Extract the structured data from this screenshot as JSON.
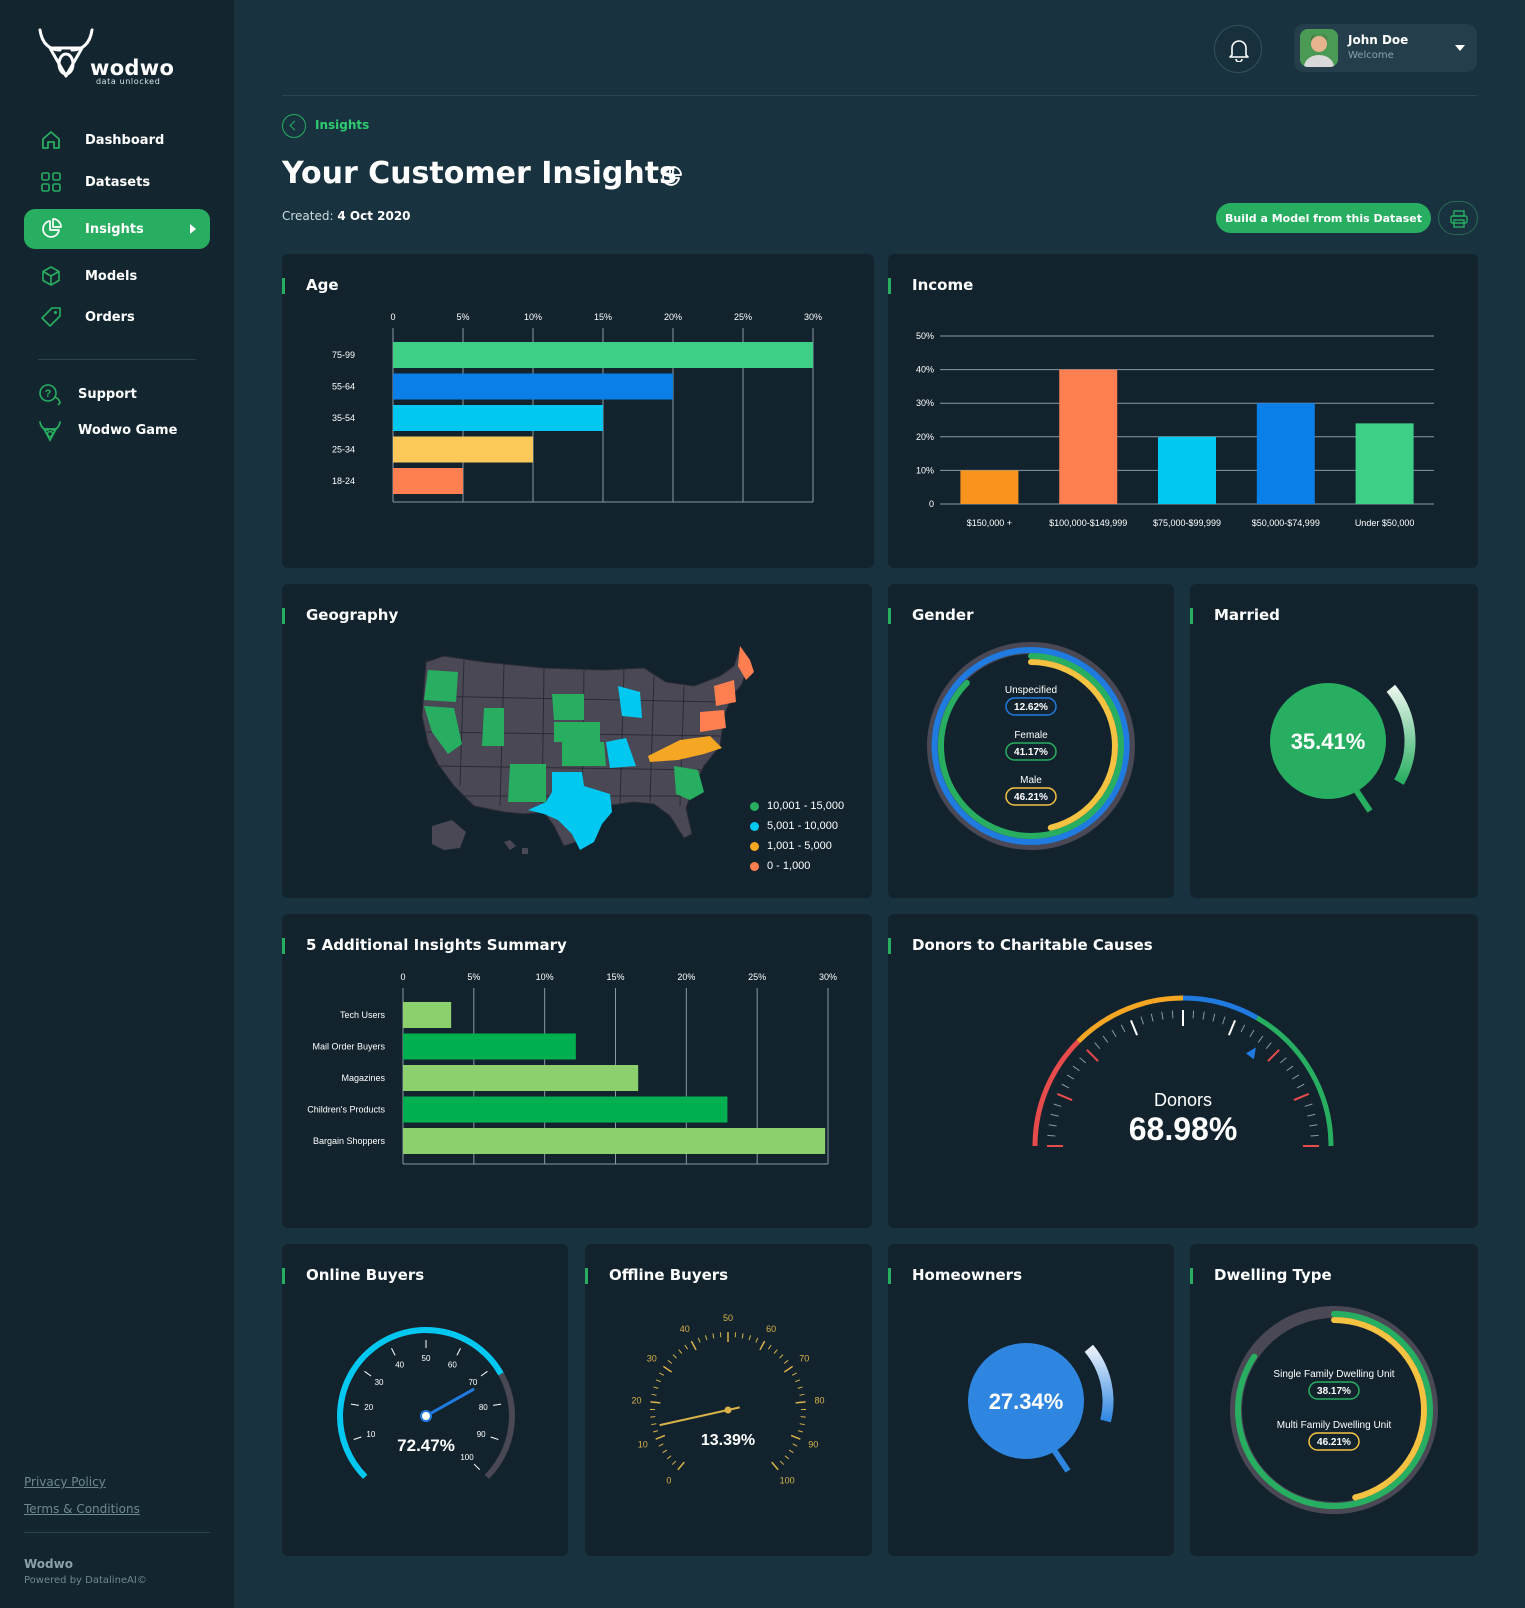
{
  "brand": {
    "name": "wodwo",
    "tagline": "data unlocked"
  },
  "nav": {
    "items": [
      {
        "label": "Dashboard",
        "icon": "home-icon"
      },
      {
        "label": "Datasets",
        "icon": "grid-icon"
      },
      {
        "label": "Insights",
        "icon": "pie-chart-icon",
        "active": true
      },
      {
        "label": "Models",
        "icon": "cube-icon"
      },
      {
        "label": "Orders",
        "icon": "tag-icon"
      }
    ],
    "support": "Support",
    "game": "Wodwo Game"
  },
  "footer": {
    "privacy": "Privacy Policy",
    "terms": "Terms & Conditions",
    "brand": "Wodwo",
    "powered": "Powered by DatalineAI©"
  },
  "user": {
    "name": "John Doe",
    "subtitle": "Welcome"
  },
  "header": {
    "breadcrumb": "Insights",
    "title": "Your Customer Insights",
    "created_label": "Created:",
    "created_date": "4 Oct 2020",
    "build_button": "Build a Model from this Dataset"
  },
  "cards": {
    "age": "Age",
    "income": "Income",
    "geography": "Geography",
    "gender": "Gender",
    "married": "Married",
    "summary": "5 Additional Insights Summary",
    "donors": "Donors to Charitable Causes",
    "online": "Online Buyers",
    "offline": "Offline Buyers",
    "homeowners": "Homeowners",
    "dwelling": "Dwelling Type"
  },
  "geography_legend": [
    {
      "label": "10,001 - 15,000",
      "color": "#27ae60"
    },
    {
      "label": "5,001 - 10,000",
      "color": "#00c8f0"
    },
    {
      "label": "1,001 - 5,000",
      "color": "#f5a623"
    },
    {
      "label": "0 - 1,000",
      "color": "#ff7f50"
    }
  ],
  "colors": {
    "accent": "#27ae60",
    "card_bg": "#12232e",
    "page_bg": "#19323f",
    "sidebar_bg": "#132630"
  },
  "chart_data": [
    {
      "id": "age",
      "type": "bar",
      "orientation": "horizontal",
      "categories": [
        "75-99",
        "55-64",
        "35-54",
        "25-34",
        "18-24"
      ],
      "values": [
        30,
        20,
        15,
        10,
        5
      ],
      "colors": [
        "#3ccf85",
        "#0a7fe8",
        "#00c8f0",
        "#fbc85a",
        "#ff7f50"
      ],
      "xticks": [
        "0",
        "5%",
        "10%",
        "15%",
        "20%",
        "25%",
        "30%"
      ],
      "xlim": [
        0,
        30
      ]
    },
    {
      "id": "income",
      "type": "bar",
      "categories": [
        "$150,000 +",
        "$100,000-$149,999",
        "$75,000-$99,999",
        "$50,000-$74,999",
        "Under $50,000"
      ],
      "values": [
        10,
        40,
        20,
        30,
        24
      ],
      "colors": [
        "#f7931e",
        "#ff7f50",
        "#00c8f0",
        "#0a7fe8",
        "#3ccf85"
      ],
      "yticks": [
        "0",
        "10%",
        "20%",
        "30%",
        "40%",
        "50%"
      ],
      "ylim": [
        0,
        50
      ]
    },
    {
      "id": "gender",
      "type": "pie",
      "labels": [
        "Unspecified",
        "Female",
        "Male"
      ],
      "display": [
        "12.62%",
        "41.17%",
        "46.21%"
      ],
      "values": [
        12.62,
        41.17,
        46.21
      ],
      "colors": [
        "#1f7be0",
        "#27ae60",
        "#f5c242"
      ]
    },
    {
      "id": "married",
      "type": "pie",
      "display": "35.41%",
      "value": 35.41
    },
    {
      "id": "summary",
      "type": "bar",
      "orientation": "horizontal",
      "categories": [
        "Tech Users",
        "Mail Order Buyers",
        "Magazines",
        "Children's Products",
        "Bargain Shoppers"
      ],
      "values": [
        3.4,
        12.2,
        16.6,
        22.9,
        29.8
      ],
      "colors": [
        "#8ccf6d",
        "#00b050",
        "#8ccf6d",
        "#00b050",
        "#8ccf6d"
      ],
      "xticks": [
        "0",
        "5%",
        "10%",
        "15%",
        "20%",
        "25%",
        "30%"
      ],
      "xlim": [
        0,
        30
      ]
    },
    {
      "id": "donors",
      "type": "gauge",
      "label": "Donors",
      "display": "68.98%",
      "value": 68.98
    },
    {
      "id": "online",
      "type": "gauge",
      "display": "72.47%",
      "value": 72.47,
      "ticks": [
        "10",
        "20",
        "30",
        "40",
        "50",
        "60",
        "70",
        "80",
        "90",
        "100"
      ]
    },
    {
      "id": "offline",
      "type": "gauge",
      "display": "13.39%",
      "value": 13.39,
      "ticks": [
        "0",
        "10",
        "20",
        "30",
        "40",
        "50",
        "60",
        "70",
        "80",
        "90",
        "100"
      ]
    },
    {
      "id": "homeowners",
      "type": "pie",
      "display": "27.34%",
      "value": 27.34
    },
    {
      "id": "dwelling",
      "type": "pie",
      "labels": [
        "Single Family Dwelling Unit",
        "Multi Family Dwelling Unit"
      ],
      "display": [
        "38.17%",
        "46.21%"
      ],
      "values": [
        38.17,
        46.21
      ],
      "colors": [
        "#27ae60",
        "#f5c242"
      ]
    }
  ]
}
